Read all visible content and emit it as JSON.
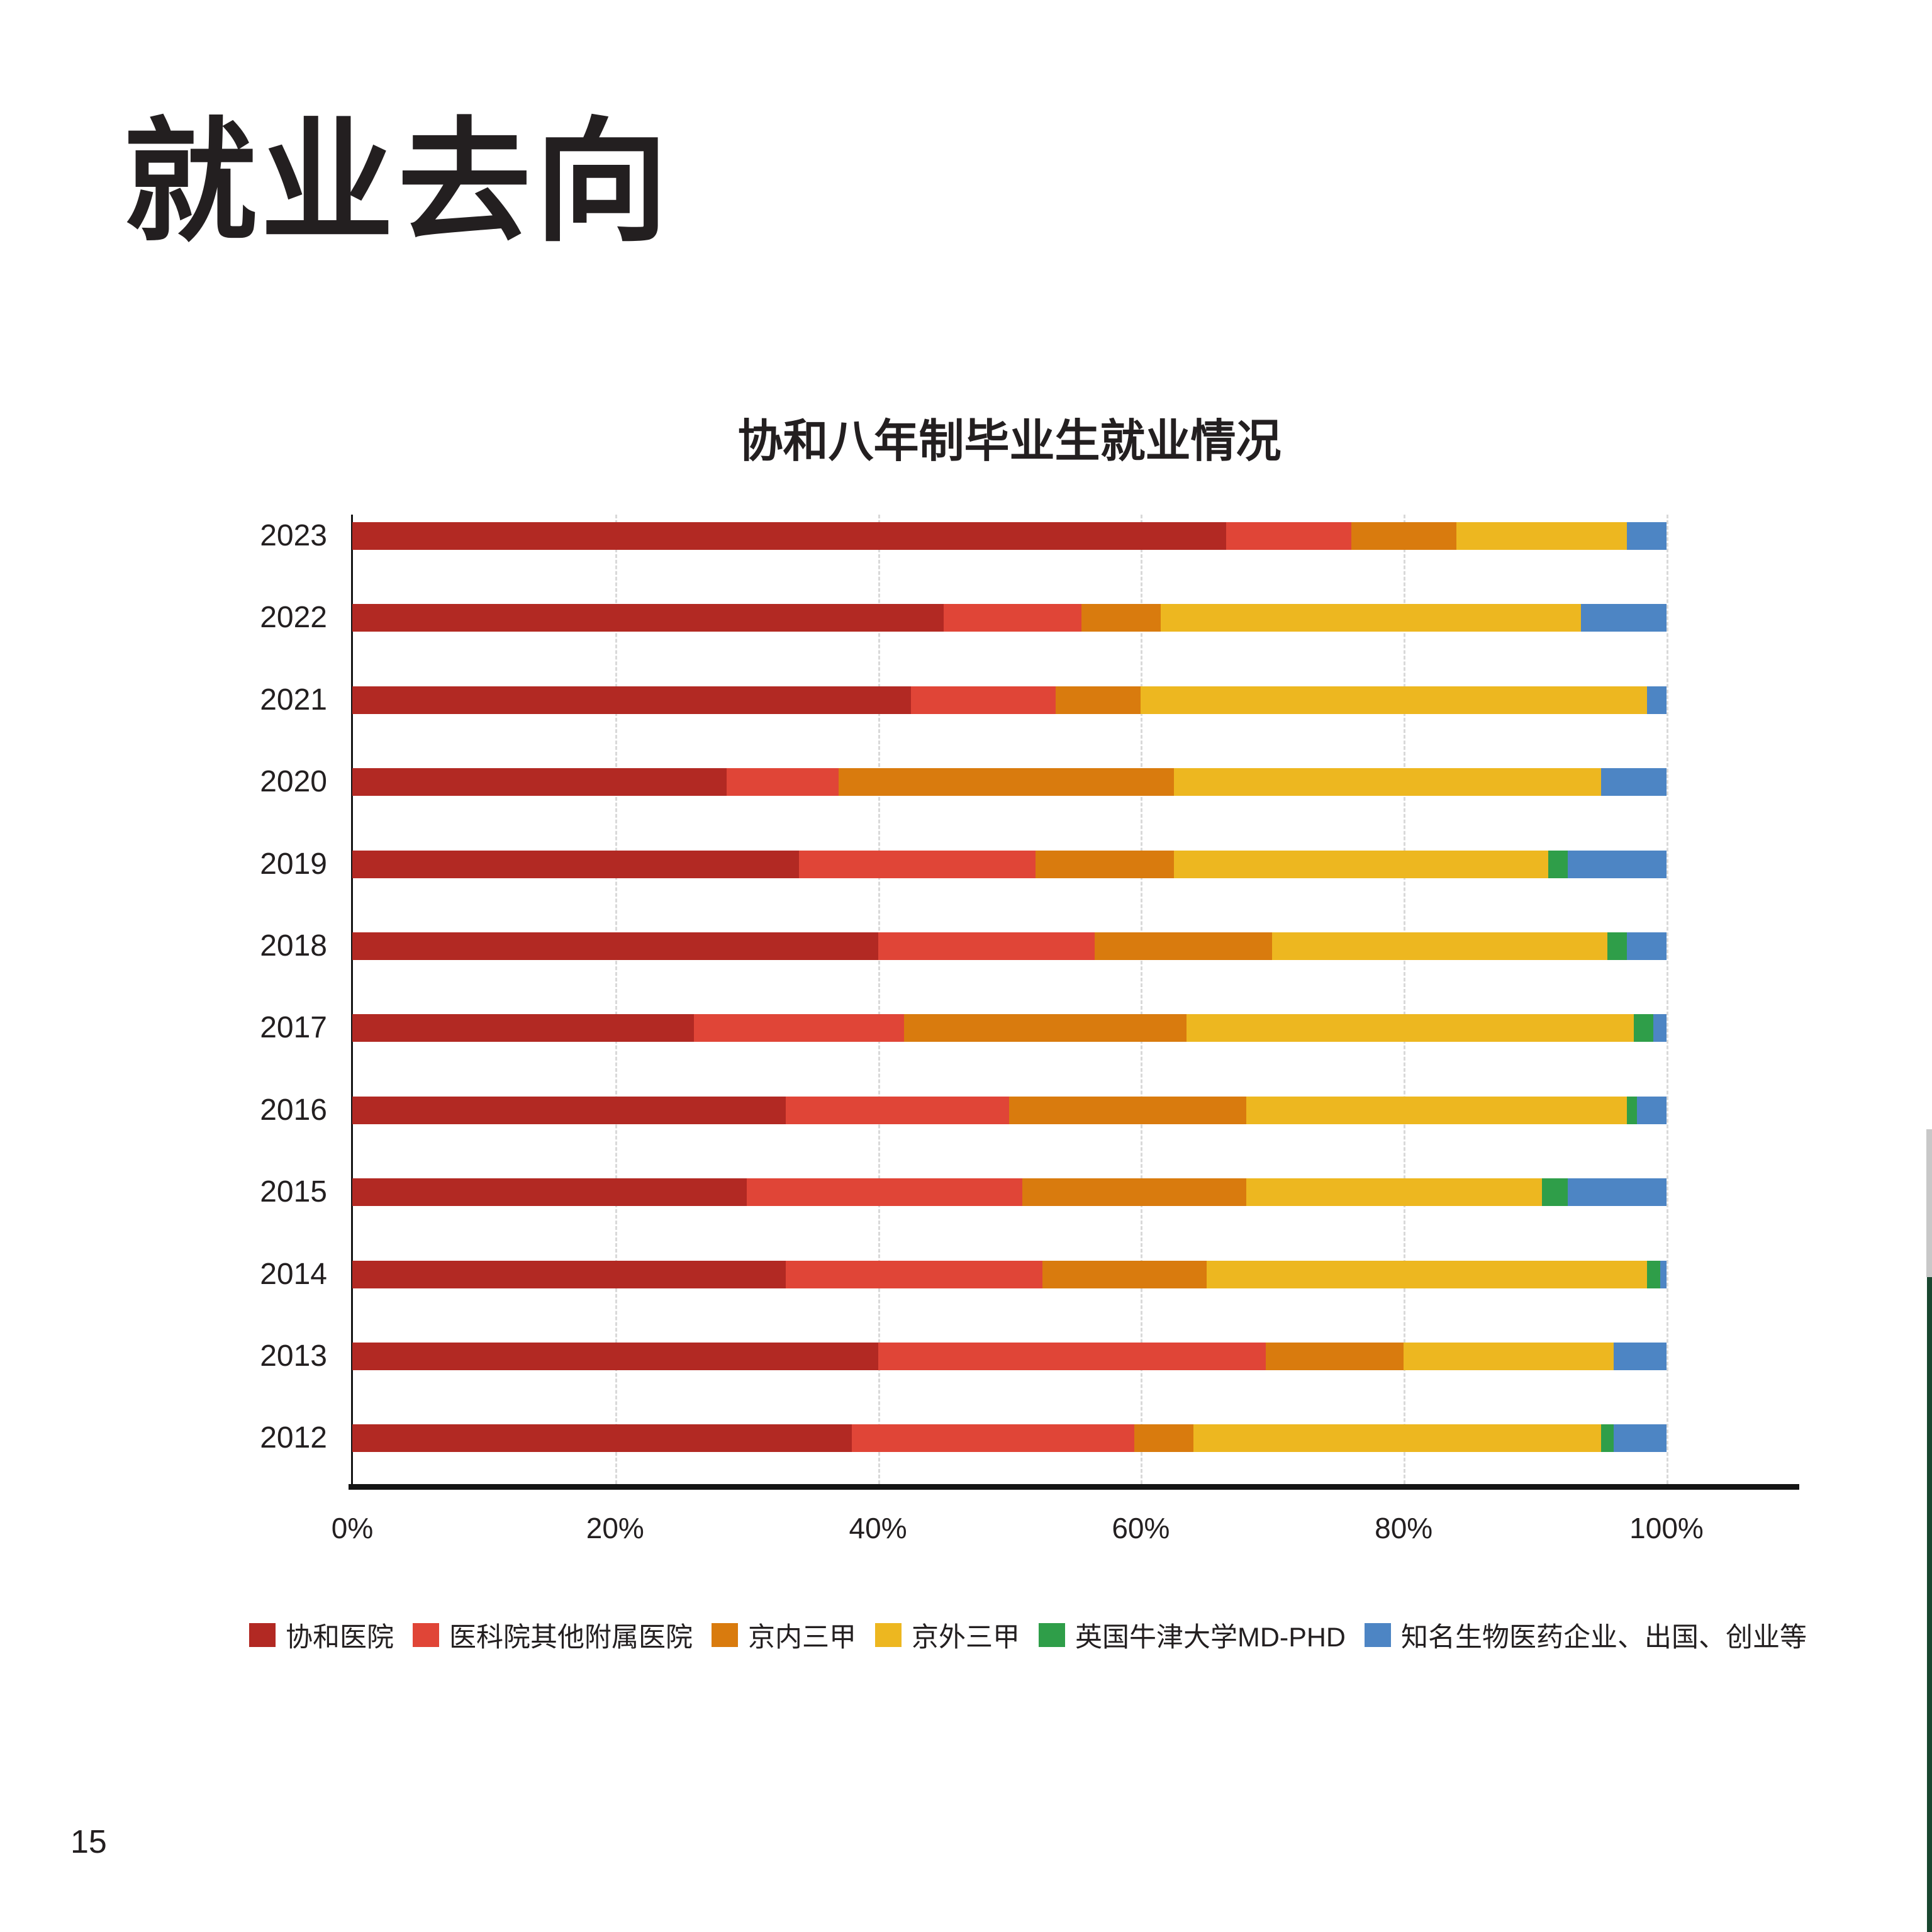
{
  "page": {
    "title": "就业去向",
    "page_number": "15"
  },
  "chart_data": {
    "type": "bar",
    "orientation": "horizontal",
    "stacked": true,
    "stack_mode": "percent",
    "title": "协和八年制毕业生就业情况",
    "categories": [
      "2023",
      "2022",
      "2021",
      "2020",
      "2019",
      "2018",
      "2017",
      "2016",
      "2015",
      "2014",
      "2013",
      "2012"
    ],
    "series": [
      {
        "name": "协和医院",
        "color": "#B22923",
        "values": [
          66.5,
          45,
          42.5,
          28.5,
          34,
          40,
          26,
          33,
          30,
          33,
          40,
          38
        ]
      },
      {
        "name": "医科院其他附属医院",
        "color": "#E04537",
        "values": [
          9.5,
          10.5,
          11,
          8.5,
          18,
          16.5,
          16,
          17,
          21,
          19.5,
          29.5,
          21.5
        ]
      },
      {
        "name": "京内三甲",
        "color": "#D97B0E",
        "values": [
          8,
          6,
          6.5,
          25.5,
          10.5,
          13.5,
          21.5,
          18,
          17,
          12.5,
          10.5,
          4.5
        ]
      },
      {
        "name": "京外三甲",
        "color": "#EDB720",
        "values": [
          13,
          32,
          38.5,
          32.5,
          28.5,
          25.5,
          34,
          29,
          22.5,
          33.5,
          16,
          31
        ]
      },
      {
        "name": "英国牛津大学MD-PHD",
        "color": "#2F9E49",
        "values": [
          0,
          0,
          0,
          0,
          1.5,
          1.5,
          1.5,
          0.75,
          2,
          1,
          0,
          1
        ]
      },
      {
        "name": "知名生物医药企业、出国、创业等",
        "color": "#4D85C4",
        "values": [
          3,
          6.5,
          1.5,
          5,
          7.5,
          3,
          1,
          2.25,
          7.5,
          0.5,
          4,
          4
        ]
      }
    ],
    "x_ticks": [
      {
        "label": "0%",
        "value": 0
      },
      {
        "label": "20%",
        "value": 20
      },
      {
        "label": "40%",
        "value": 40
      },
      {
        "label": "60%",
        "value": 60
      },
      {
        "label": "80%",
        "value": 80
      },
      {
        "label": "100%",
        "value": 100
      }
    ],
    "xlim": [
      0,
      100
    ],
    "grid": "vertical-dashed",
    "legend_position": "bottom"
  }
}
